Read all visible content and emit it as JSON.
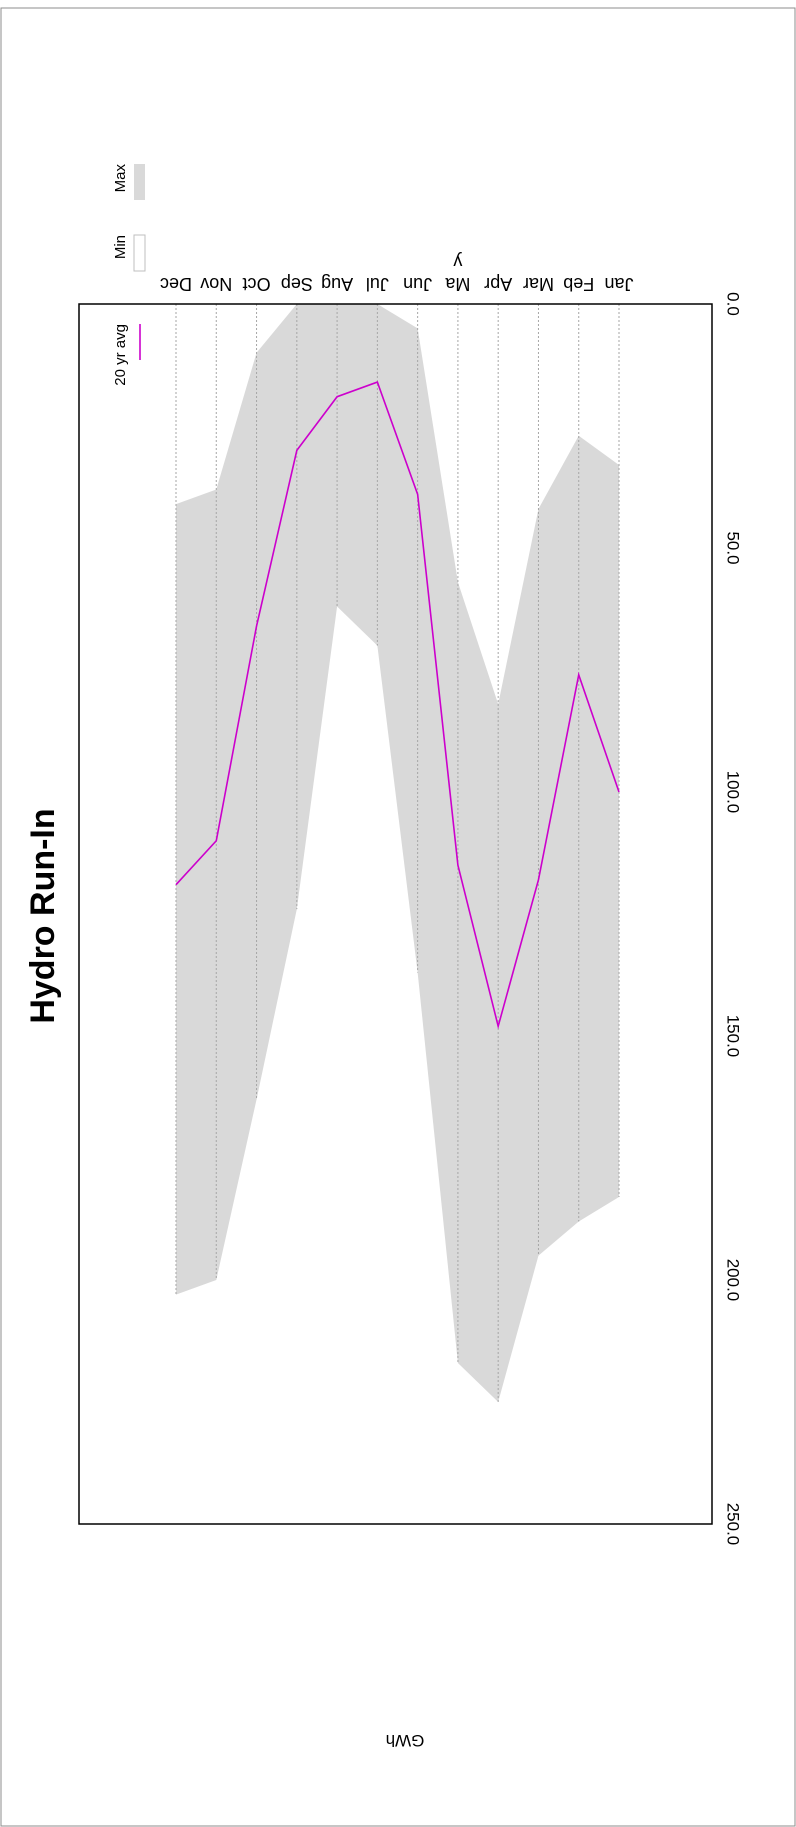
{
  "chart_data": {
    "type": "area",
    "title": "Hydro Run-In",
    "xlabel": "",
    "ylabel": "GWh",
    "ylim": [
      0,
      250
    ],
    "yticks": [
      "0.0",
      "50.0",
      "100.0",
      "150.0",
      "200.0",
      "250.0"
    ],
    "categories": [
      "Jan",
      "Feb",
      "Mar",
      "Apr",
      "Ma y",
      "Jun",
      "Jul",
      "Aug",
      "Sep",
      "Oct",
      "Nov",
      "Dec"
    ],
    "series": [
      {
        "name": "Max",
        "kind": "band-top",
        "color": "#d9d9d9",
        "values": [
          183,
          188,
          195,
          225,
          217,
          137,
          70,
          62,
          124,
          163,
          200,
          203
        ]
      },
      {
        "name": "Min",
        "kind": "band-bottom",
        "color": "#ffffff",
        "values": [
          33,
          27,
          42,
          82,
          57,
          5,
          0,
          0,
          0,
          10,
          38,
          41
        ]
      },
      {
        "name": "20 yr avg",
        "kind": "line",
        "color": "#cc00cc",
        "values": [
          100,
          76,
          118,
          148,
          115,
          39,
          16,
          19,
          30,
          66,
          110,
          119
        ]
      }
    ],
    "grid": "vertical dotted",
    "legend_position": "top-right",
    "orientation": "rotated 180 degrees"
  }
}
